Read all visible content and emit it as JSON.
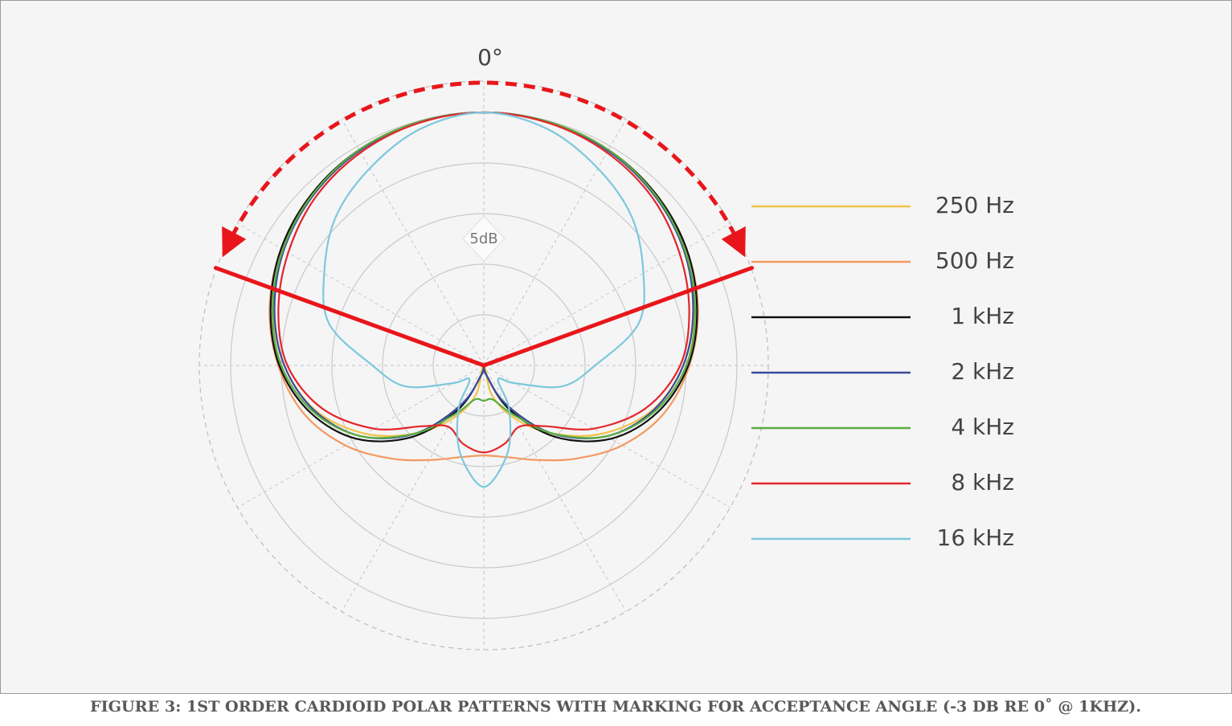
{
  "chart_data": {
    "type": "polar",
    "caption": "FIGURE 3: 1ST ORDER CARDIOID POLAR PATTERNS WITH MARKING FOR ACCEPTANCE ANGLE (-3 DB RE 0˚ @ 1KHZ).",
    "theta_label": "0°",
    "ring_step_label": "5dB",
    "rlim": [
      -25,
      0
    ],
    "rticks": [
      -20,
      -15,
      -10,
      -5,
      0
    ],
    "acceptance_angle": [
      -70,
      70
    ],
    "theta": [
      0,
      15,
      30,
      45,
      60,
      75,
      90,
      105,
      120,
      135,
      150,
      165,
      180,
      195,
      210,
      225,
      240,
      255,
      270,
      285,
      300,
      315,
      330,
      345
    ],
    "series": [
      {
        "name": "250 Hz",
        "color": "#f2c24a",
        "values": [
          0,
          -0.1,
          -0.4,
          -1.1,
          -2.1,
          -3.5,
          -5.3,
          -7.8,
          -11.5,
          -15.5,
          -19,
          -22,
          -25,
          -22,
          -19,
          -15.5,
          -11.5,
          -7.8,
          -5.3,
          -3.5,
          -2.1,
          -1.1,
          -0.4,
          -0.1
        ]
      },
      {
        "name": "500 Hz",
        "color": "#f39a63",
        "values": [
          0,
          -0.1,
          -0.4,
          -1.0,
          -1.9,
          -3.1,
          -4.7,
          -6.6,
          -9.2,
          -12,
          -14.2,
          -15.6,
          -16.1,
          -15.6,
          -14.2,
          -12,
          -9.2,
          -6.6,
          -4.7,
          -3.1,
          -1.9,
          -1.0,
          -0.4,
          -0.1
        ]
      },
      {
        "name": "1 kHz",
        "color": "#111111",
        "values": [
          0,
          -0.1,
          -0.4,
          -1.0,
          -1.9,
          -3.2,
          -4.8,
          -7.2,
          -10.5,
          -15,
          -20,
          -24,
          -25,
          -24,
          -20,
          -15,
          -10.5,
          -7.2,
          -4.8,
          -3.2,
          -1.9,
          -1.0,
          -0.4,
          -0.1
        ]
      },
      {
        "name": "2 kHz",
        "color": "#3b4a9a",
        "values": [
          0,
          -0.1,
          -0.5,
          -1.2,
          -2.2,
          -3.6,
          -5.3,
          -7.7,
          -11,
          -15.5,
          -20.5,
          -24,
          -25,
          -24,
          -20.5,
          -15.5,
          -11,
          -7.7,
          -5.3,
          -3.6,
          -2.2,
          -1.2,
          -0.5,
          -0.1
        ]
      },
      {
        "name": "4 kHz",
        "color": "#5aae3f",
        "values": [
          0,
          -0.1,
          -0.4,
          -1.1,
          -2.1,
          -3.4,
          -5.0,
          -7.5,
          -11,
          -15.5,
          -19.5,
          -21.5,
          -21.5,
          -21.5,
          -19.5,
          -15.5,
          -11,
          -7.5,
          -5.0,
          -3.4,
          -2.1,
          -1.1,
          -0.4,
          -0.1
        ]
      },
      {
        "name": "8 kHz",
        "color": "#e3262b",
        "values": [
          0,
          -0.2,
          -0.7,
          -1.5,
          -2.7,
          -4.0,
          -5.6,
          -8.5,
          -12.5,
          -16.5,
          -18,
          -17,
          -16.4,
          -17,
          -18,
          -16.5,
          -12.5,
          -8.5,
          -5.6,
          -4.0,
          -2.7,
          -1.5,
          -0.7,
          -0.2
        ]
      },
      {
        "name": "16 kHz",
        "color": "#7cc8de",
        "values": [
          0,
          -0.8,
          -2.5,
          -4.3,
          -6.8,
          -9.2,
          -14,
          -17,
          -21.5,
          -23,
          -20,
          -16,
          -13,
          -16,
          -20,
          -23,
          -21.5,
          -17,
          -14,
          -9.2,
          -6.8,
          -4.3,
          -2.5,
          -0.8
        ]
      }
    ]
  }
}
